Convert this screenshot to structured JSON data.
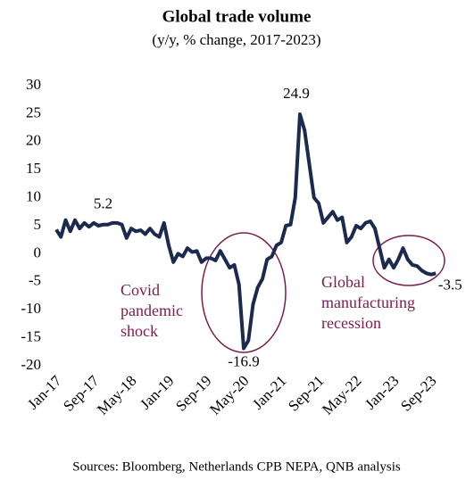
{
  "chart_data": {
    "type": "line",
    "title": "Global trade volume",
    "subtitle": "(y/y, % change, 2017-2023)",
    "source": "Sources: Bloomberg, Netherlands CPB NEPA, QNB analysis",
    "annotations": [
      [
        "Covid",
        "pandemic",
        "shock"
      ],
      [
        "Global",
        "manufacturing",
        "recession"
      ]
    ],
    "categories": [
      "Jan-17",
      null,
      null,
      null,
      null,
      null,
      null,
      null,
      "Sep-17",
      null,
      null,
      null,
      null,
      null,
      null,
      null,
      "May-18",
      null,
      null,
      null,
      null,
      null,
      null,
      null,
      "Jan-19",
      null,
      null,
      null,
      null,
      null,
      null,
      null,
      "Sep-19",
      null,
      null,
      null,
      null,
      null,
      null,
      null,
      "May-20",
      null,
      null,
      null,
      null,
      null,
      null,
      null,
      "Jan-21",
      null,
      null,
      null,
      null,
      null,
      null,
      null,
      "Sep-21",
      null,
      null,
      null,
      null,
      null,
      null,
      null,
      "May-22",
      null,
      null,
      null,
      null,
      null,
      null,
      null,
      "Jan-23",
      null,
      null,
      null,
      null,
      null,
      null,
      null,
      "Sep-23",
      null
    ],
    "series": [
      {
        "name": "Global trade volume",
        "color": "#1c2a4f",
        "values": [
          4.3,
          3.0,
          6.0,
          4.0,
          6.0,
          4.5,
          5.5,
          4.8,
          5.5,
          5.0,
          5.2,
          5.2,
          5.5,
          5.5,
          5.2,
          2.8,
          4.5,
          4.0,
          4.2,
          3.5,
          4.5,
          3.5,
          3.0,
          5.5,
          1.5,
          -1.5,
          0.0,
          -0.5,
          1.0,
          0.3,
          0.5,
          -1.5,
          -0.8,
          -0.8,
          -1.2,
          0.5,
          -1.0,
          -2.5,
          -2.0,
          -5.5,
          -16.9,
          -15.5,
          -9.0,
          -6.0,
          -4.5,
          -1.0,
          -0.5,
          1.5,
          2.0,
          5.0,
          5.2,
          10.0,
          24.9,
          22.0,
          16.0,
          10.0,
          9.0,
          5.5,
          6.5,
          7.5,
          6.0,
          6.5,
          2.0,
          3.0,
          5.0,
          4.5,
          5.5,
          5.8,
          4.5,
          1.0,
          -2.5,
          -1.0,
          -2.5,
          -1.0,
          1.0,
          -1.0,
          -2.0,
          -2.2,
          -3.0,
          -3.5,
          -3.7,
          -3.5
        ]
      }
    ],
    "ylim": [
      -20,
      30
    ],
    "yticks": [
      -20,
      -15,
      -10,
      -5,
      0,
      5,
      10,
      15,
      20,
      25,
      30
    ],
    "grid": false
  }
}
